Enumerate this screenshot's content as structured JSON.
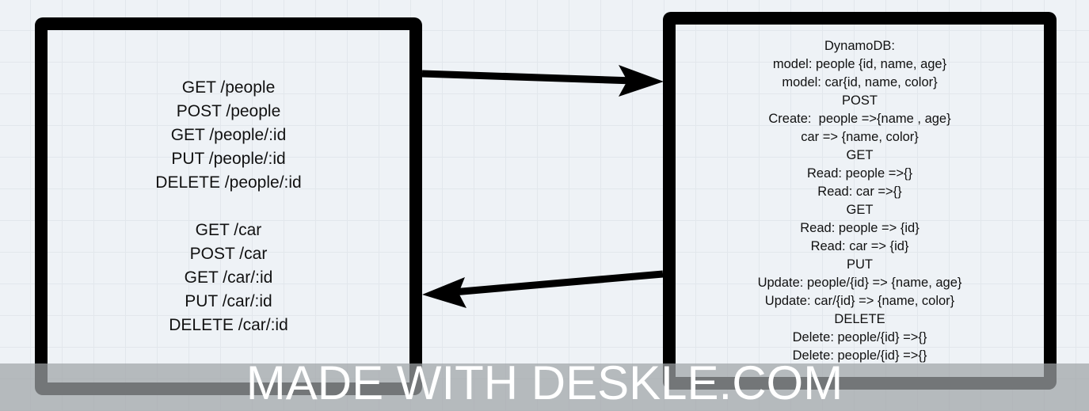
{
  "left_box": {
    "people_endpoints": [
      "GET /people",
      "POST /people",
      "GET /people/:id",
      "PUT /people/:id",
      "DELETE /people/:id"
    ],
    "car_endpoints": [
      "GET /car",
      "POST /car",
      "GET /car/:id",
      "PUT /car/:id",
      "DELETE /car/:id"
    ]
  },
  "right_box": {
    "lines": [
      "DynamoDB:",
      "model: people {id, name, age}",
      "model: car{id, name, color}",
      "POST",
      "Create:  people =>{name , age}",
      "car => {name, color}",
      "GET",
      "Read: people =>{}",
      "Read: car =>{}",
      "GET",
      "Read: people => {id}",
      "Read: car => {id}",
      "PUT",
      "Update: people/{id} => {name, age}",
      "Update: car/{id} => {name, color}",
      "DELETE",
      "Delete: people/{id} =>{}",
      "Delete: people/{id} =>{}"
    ]
  },
  "watermark": {
    "text": "MADE WITH DESKLE.COM"
  },
  "colors": {
    "canvas": "#eef2f6",
    "grid": "#e2e7ec",
    "stroke": "#000000",
    "watermark_band": "#a0a3a6",
    "watermark_text": "#ffffff"
  }
}
